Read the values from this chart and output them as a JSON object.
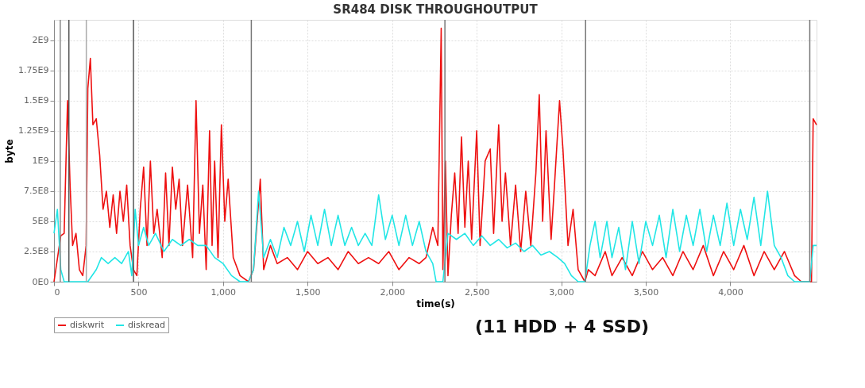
{
  "chart_data": {
    "type": "line",
    "title": "SR484 DISK THROUGHOUTPUT",
    "xlabel": "time(s)",
    "ylabel": "byte",
    "xlim": [
      0,
      4510
    ],
    "ylim": [
      0,
      2170000000.0
    ],
    "xticks": [
      0,
      500,
      {
        "value": 1000,
        "label": "1,000"
      },
      {
        "value": 1500,
        "label": "1,500"
      },
      {
        "value": 2000,
        "label": "2,000"
      },
      {
        "value": 2500,
        "label": "2,500"
      },
      {
        "value": 3000,
        "label": "3,000"
      },
      {
        "value": 3500,
        "label": "3,500"
      },
      {
        "value": 4000,
        "label": "4,000"
      }
    ],
    "yticks": [
      {
        "value": 0,
        "label": "0E0"
      },
      {
        "value": 250000000.0,
        "label": "2.5E8"
      },
      {
        "value": 500000000.0,
        "label": "5E8"
      },
      {
        "value": 750000000.0,
        "label": "7.5E8"
      },
      {
        "value": 1000000000.0,
        "label": "1E9"
      },
      {
        "value": 1250000000.0,
        "label": "1.25E9"
      },
      {
        "value": 1500000000.0,
        "label": "1.5E9"
      },
      {
        "value": 1750000000.0,
        "label": "1.75E9"
      },
      {
        "value": 2000000000.0,
        "label": "2E9"
      }
    ],
    "grid": true,
    "legend": "bottom",
    "line_style": "solid",
    "ref_lines": [
      {
        "axis": "x",
        "value": 37,
        "color": "#888888"
      },
      {
        "axis": "x",
        "value": 88,
        "color": "#555555"
      },
      {
        "axis": "x",
        "value": 191,
        "color": "#aaaaaa"
      },
      {
        "axis": "x",
        "value": 470,
        "color": "#555555"
      },
      {
        "axis": "x",
        "value": 1167,
        "color": "#777777"
      },
      {
        "axis": "x",
        "value": 2312,
        "color": "#777777"
      },
      {
        "axis": "x",
        "value": 3144,
        "color": "#777777"
      },
      {
        "axis": "x",
        "value": 4470,
        "color": "#777777"
      }
    ],
    "annotations": [
      "(11 HDD + 4 SSD)"
    ],
    "series": [
      {
        "name": "diskwrit",
        "color": "#ee1111",
        "x": [
          0,
          40,
          60,
          80,
          95,
          110,
          130,
          150,
          170,
          190,
          200,
          215,
          230,
          250,
          270,
          290,
          310,
          330,
          350,
          370,
          390,
          410,
          430,
          450,
          470,
          490,
          510,
          530,
          550,
          570,
          590,
          610,
          640,
          660,
          680,
          700,
          720,
          740,
          760,
          790,
          820,
          840,
          860,
          880,
          900,
          920,
          935,
          950,
          970,
          990,
          1010,
          1030,
          1060,
          1100,
          1150,
          1180,
          1220,
          1240,
          1280,
          1320,
          1380,
          1440,
          1500,
          1560,
          1620,
          1680,
          1740,
          1800,
          1860,
          1920,
          1980,
          2040,
          2100,
          2160,
          2200,
          2240,
          2270,
          2290,
          2300,
          2315,
          2330,
          2350,
          2370,
          2390,
          2410,
          2430,
          2450,
          2470,
          2500,
          2520,
          2550,
          2580,
          2600,
          2630,
          2650,
          2670,
          2700,
          2730,
          2760,
          2790,
          2820,
          2850,
          2870,
          2890,
          2910,
          2940,
          2960,
          2990,
          3010,
          3040,
          3070,
          3100,
          3140,
          3160,
          3200,
          3260,
          3300,
          3360,
          3420,
          3480,
          3540,
          3600,
          3660,
          3720,
          3780,
          3840,
          3900,
          3960,
          4020,
          4080,
          4140,
          4200,
          4260,
          4320,
          4380,
          4420,
          4480,
          4490,
          4510
        ],
        "values": [
          0,
          380000000.0,
          400000000.0,
          1500000000.0,
          800000000.0,
          300000000.0,
          400000000.0,
          100000000.0,
          50000000.0,
          300000000.0,
          1600000000.0,
          1850000000.0,
          1300000000.0,
          1350000000.0,
          1050000000.0,
          600000000.0,
          750000000.0,
          450000000.0,
          720000000.0,
          400000000.0,
          750000000.0,
          500000000.0,
          800000000.0,
          300000000.0,
          100000000.0,
          50000000.0,
          600000000.0,
          950000000.0,
          300000000.0,
          1000000000.0,
          400000000.0,
          600000000.0,
          200000000.0,
          900000000.0,
          300000000.0,
          950000000.0,
          600000000.0,
          850000000.0,
          300000000.0,
          800000000.0,
          200000000.0,
          1500000000.0,
          400000000.0,
          800000000.0,
          100000000.0,
          1250000000.0,
          300000000.0,
          1000000000.0,
          200000000.0,
          1300000000.0,
          500000000.0,
          850000000.0,
          200000000.0,
          50000000.0,
          0,
          100000000.0,
          850000000.0,
          100000000.0,
          300000000.0,
          150000000.0,
          200000000.0,
          100000000.0,
          250000000.0,
          150000000.0,
          200000000.0,
          100000000.0,
          250000000.0,
          150000000.0,
          200000000.0,
          150000000.0,
          250000000.0,
          100000000.0,
          200000000.0,
          150000000.0,
          200000000.0,
          450000000.0,
          300000000.0,
          2100000000.0,
          100000000.0,
          1000000000.0,
          50000000.0,
          550000000.0,
          900000000.0,
          400000000.0,
          1200000000.0,
          450000000.0,
          1000000000.0,
          350000000.0,
          1250000000.0,
          300000000.0,
          1000000000.0,
          1100000000.0,
          400000000.0,
          1300000000.0,
          500000000.0,
          900000000.0,
          300000000.0,
          800000000.0,
          250000000.0,
          750000000.0,
          300000000.0,
          900000000.0,
          1550000000.0,
          500000000.0,
          1250000000.0,
          350000000.0,
          800000000.0,
          1500000000.0,
          1100000000.0,
          300000000.0,
          600000000.0,
          100000000.0,
          0,
          100000000.0,
          50000000.0,
          250000000.0,
          50000000.0,
          200000000.0,
          50000000.0,
          250000000.0,
          100000000.0,
          200000000.0,
          50000000.0,
          250000000.0,
          100000000.0,
          300000000.0,
          50000000.0,
          250000000.0,
          100000000.0,
          300000000.0,
          50000000.0,
          250000000.0,
          100000000.0,
          250000000.0,
          50000000.0,
          0,
          0,
          1350000000.0,
          1300000000.0
        ]
      },
      {
        "name": "diskread",
        "color": "#22e6e6",
        "x": [
          0,
          20,
          40,
          60,
          100,
          200,
          250,
          280,
          320,
          360,
          400,
          440,
          460,
          480,
          500,
          530,
          560,
          600,
          650,
          700,
          750,
          800,
          850,
          900,
          950,
          1000,
          1050,
          1100,
          1150,
          1180,
          1210,
          1240,
          1280,
          1320,
          1360,
          1400,
          1440,
          1480,
          1520,
          1560,
          1600,
          1640,
          1680,
          1720,
          1760,
          1800,
          1840,
          1880,
          1920,
          1960,
          2000,
          2040,
          2080,
          2120,
          2160,
          2200,
          2240,
          2260,
          2300,
          2330,
          2380,
          2430,
          2480,
          2530,
          2580,
          2630,
          2680,
          2730,
          2780,
          2830,
          2880,
          2930,
          2980,
          3020,
          3060,
          3100,
          3140,
          3170,
          3200,
          3230,
          3270,
          3300,
          3340,
          3380,
          3420,
          3460,
          3500,
          3540,
          3580,
          3620,
          3660,
          3700,
          3740,
          3780,
          3820,
          3860,
          3900,
          3940,
          3980,
          4020,
          4060,
          4100,
          4140,
          4180,
          4220,
          4260,
          4300,
          4340,
          4380,
          4470,
          4490,
          4510
        ],
        "values": [
          400000000.0,
          600000000.0,
          100000000.0,
          0,
          0,
          0,
          100000000.0,
          200000000.0,
          150000000.0,
          200000000.0,
          150000000.0,
          250000000.0,
          50000000.0,
          600000000.0,
          300000000.0,
          450000000.0,
          300000000.0,
          400000000.0,
          250000000.0,
          350000000.0,
          300000000.0,
          350000000.0,
          300000000.0,
          300000000.0,
          200000000.0,
          150000000.0,
          50000000.0,
          0,
          0,
          100000000.0,
          750000000.0,
          200000000.0,
          350000000.0,
          200000000.0,
          450000000.0,
          300000000.0,
          500000000.0,
          250000000.0,
          550000000.0,
          300000000.0,
          600000000.0,
          300000000.0,
          550000000.0,
          300000000.0,
          450000000.0,
          300000000.0,
          400000000.0,
          300000000.0,
          720000000.0,
          350000000.0,
          550000000.0,
          300000000.0,
          550000000.0,
          300000000.0,
          500000000.0,
          250000000.0,
          150000000.0,
          0,
          0,
          400000000.0,
          350000000.0,
          400000000.0,
          300000000.0,
          380000000.0,
          300000000.0,
          350000000.0,
          280000000.0,
          320000000.0,
          250000000.0,
          300000000.0,
          220000000.0,
          250000000.0,
          200000000.0,
          150000000.0,
          50000000.0,
          0,
          0,
          300000000.0,
          500000000.0,
          200000000.0,
          500000000.0,
          200000000.0,
          450000000.0,
          100000000.0,
          500000000.0,
          150000000.0,
          500000000.0,
          300000000.0,
          550000000.0,
          200000000.0,
          600000000.0,
          250000000.0,
          550000000.0,
          300000000.0,
          600000000.0,
          250000000.0,
          550000000.0,
          300000000.0,
          650000000.0,
          300000000.0,
          600000000.0,
          350000000.0,
          700000000.0,
          300000000.0,
          750000000.0,
          300000000.0,
          200000000.0,
          50000000.0,
          0,
          0,
          300000000.0,
          300000000.0
        ]
      }
    ]
  }
}
